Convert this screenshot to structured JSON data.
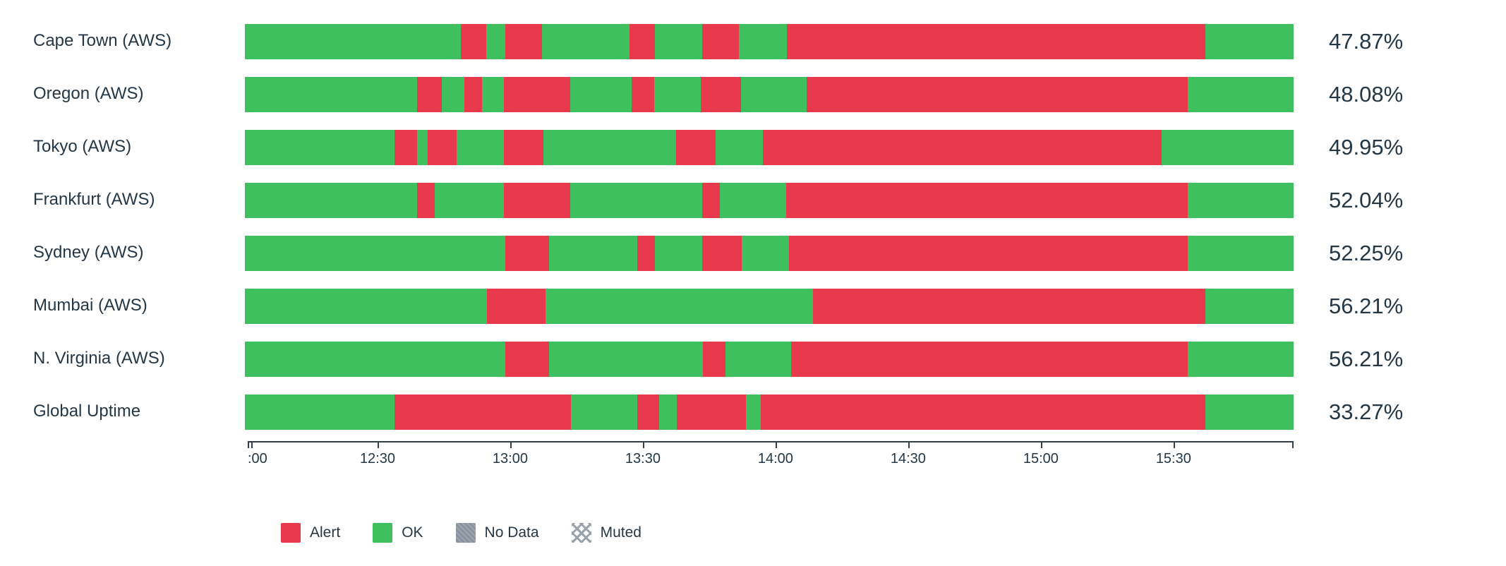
{
  "chart_data": {
    "type": "bar",
    "subtype": "status-timeline-uptime",
    "title": "",
    "xlabel": "",
    "ylabel": "",
    "x_axis": {
      "start": "12:00",
      "end": "just before 16:00",
      "ticks": [
        ":00",
        "12:30",
        "13:00",
        "13:30",
        "14:00",
        "14:30",
        "15:00",
        "15:30"
      ],
      "tick_positions_pct": [
        0,
        12.65,
        25.3,
        37.95,
        50.6,
        63.25,
        75.9,
        88.55
      ]
    },
    "colors": {
      "alert": "#e93a4d",
      "ok": "#3ec05e",
      "nodata": "#8a929d",
      "text": "#243747"
    },
    "rows": [
      {
        "label": "Cape Town (AWS)",
        "uptime_label": "47.87%",
        "uptime_pct": 47.87,
        "segments": [
          {
            "status": "ok",
            "width_pct": 20.6
          },
          {
            "status": "alert",
            "width_pct": 2.4
          },
          {
            "status": "ok",
            "width_pct": 1.8
          },
          {
            "status": "alert",
            "width_pct": 3.5
          },
          {
            "status": "ok",
            "width_pct": 8.4
          },
          {
            "status": "alert",
            "width_pct": 2.4
          },
          {
            "status": "ok",
            "width_pct": 4.5
          },
          {
            "status": "alert",
            "width_pct": 3.5
          },
          {
            "status": "ok",
            "width_pct": 4.6
          },
          {
            "status": "alert",
            "width_pct": 39.9
          },
          {
            "status": "ok",
            "width_pct": 8.4
          }
        ]
      },
      {
        "label": "Oregon (AWS)",
        "uptime_label": "48.08%",
        "uptime_pct": 48.08,
        "segments": [
          {
            "status": "ok",
            "width_pct": 16.4
          },
          {
            "status": "alert",
            "width_pct": 2.4
          },
          {
            "status": "ok",
            "width_pct": 2.1
          },
          {
            "status": "alert",
            "width_pct": 1.7
          },
          {
            "status": "ok",
            "width_pct": 2.1
          },
          {
            "status": "alert",
            "width_pct": 6.3
          },
          {
            "status": "ok",
            "width_pct": 5.9
          },
          {
            "status": "alert",
            "width_pct": 2.1
          },
          {
            "status": "ok",
            "width_pct": 4.5
          },
          {
            "status": "alert",
            "width_pct": 3.8
          },
          {
            "status": "ok",
            "width_pct": 6.3
          },
          {
            "status": "alert",
            "width_pct": 36.3
          },
          {
            "status": "ok",
            "width_pct": 10.1
          }
        ]
      },
      {
        "label": "Tokyo (AWS)",
        "uptime_label": "49.95%",
        "uptime_pct": 49.95,
        "segments": [
          {
            "status": "ok",
            "width_pct": 14.3
          },
          {
            "status": "alert",
            "width_pct": 2.1
          },
          {
            "status": "ok",
            "width_pct": 1.0
          },
          {
            "status": "alert",
            "width_pct": 2.8
          },
          {
            "status": "ok",
            "width_pct": 4.5
          },
          {
            "status": "alert",
            "width_pct": 3.8
          },
          {
            "status": "ok",
            "width_pct": 12.6
          },
          {
            "status": "alert",
            "width_pct": 3.8
          },
          {
            "status": "ok",
            "width_pct": 4.5
          },
          {
            "status": "alert",
            "width_pct": 38.0
          },
          {
            "status": "ok",
            "width_pct": 12.6
          }
        ]
      },
      {
        "label": "Frankfurt (AWS)",
        "uptime_label": "52.04%",
        "uptime_pct": 52.04,
        "segments": [
          {
            "status": "ok",
            "width_pct": 16.4
          },
          {
            "status": "alert",
            "width_pct": 1.7
          },
          {
            "status": "ok",
            "width_pct": 6.6
          },
          {
            "status": "alert",
            "width_pct": 6.3
          },
          {
            "status": "ok",
            "width_pct": 12.6
          },
          {
            "status": "alert",
            "width_pct": 1.7
          },
          {
            "status": "ok",
            "width_pct": 6.3
          },
          {
            "status": "alert",
            "width_pct": 38.3
          },
          {
            "status": "ok",
            "width_pct": 10.1
          }
        ]
      },
      {
        "label": "Sydney (AWS)",
        "uptime_label": "52.25%",
        "uptime_pct": 52.25,
        "segments": [
          {
            "status": "ok",
            "width_pct": 24.8
          },
          {
            "status": "alert",
            "width_pct": 4.2
          },
          {
            "status": "ok",
            "width_pct": 8.4
          },
          {
            "status": "alert",
            "width_pct": 1.7
          },
          {
            "status": "ok",
            "width_pct": 4.5
          },
          {
            "status": "alert",
            "width_pct": 3.8
          },
          {
            "status": "ok",
            "width_pct": 4.5
          },
          {
            "status": "alert",
            "width_pct": 38.0
          },
          {
            "status": "ok",
            "width_pct": 10.1
          }
        ]
      },
      {
        "label": "Mumbai (AWS)",
        "uptime_label": "56.21%",
        "uptime_pct": 56.21,
        "segments": [
          {
            "status": "ok",
            "width_pct": 23.1
          },
          {
            "status": "alert",
            "width_pct": 5.6
          },
          {
            "status": "ok",
            "width_pct": 25.5
          },
          {
            "status": "alert",
            "width_pct": 37.4
          },
          {
            "status": "ok",
            "width_pct": 8.4
          }
        ]
      },
      {
        "label": "N. Virginia (AWS)",
        "uptime_label": "56.21%",
        "uptime_pct": 56.21,
        "segments": [
          {
            "status": "ok",
            "width_pct": 24.8
          },
          {
            "status": "alert",
            "width_pct": 4.2
          },
          {
            "status": "ok",
            "width_pct": 14.7
          },
          {
            "status": "alert",
            "width_pct": 2.1
          },
          {
            "status": "ok",
            "width_pct": 6.3
          },
          {
            "status": "alert",
            "width_pct": 37.8
          },
          {
            "status": "ok",
            "width_pct": 10.1
          }
        ]
      },
      {
        "label": "Global Uptime",
        "uptime_label": "33.27%",
        "uptime_pct": 33.27,
        "segments": [
          {
            "status": "ok",
            "width_pct": 14.3
          },
          {
            "status": "alert",
            "width_pct": 16.8
          },
          {
            "status": "ok",
            "width_pct": 6.3
          },
          {
            "status": "alert",
            "width_pct": 2.1
          },
          {
            "status": "ok",
            "width_pct": 1.7
          },
          {
            "status": "alert",
            "width_pct": 6.6
          },
          {
            "status": "ok",
            "width_pct": 1.4
          },
          {
            "status": "alert",
            "width_pct": 42.4
          },
          {
            "status": "ok",
            "width_pct": 8.4
          }
        ]
      }
    ],
    "legend": [
      {
        "label": "Alert",
        "status": "alert"
      },
      {
        "label": "OK",
        "status": "ok"
      },
      {
        "label": "No Data",
        "status": "nodata"
      },
      {
        "label": "Muted",
        "status": "muted"
      }
    ],
    "legend_position": "bottom-left",
    "grid": false
  }
}
